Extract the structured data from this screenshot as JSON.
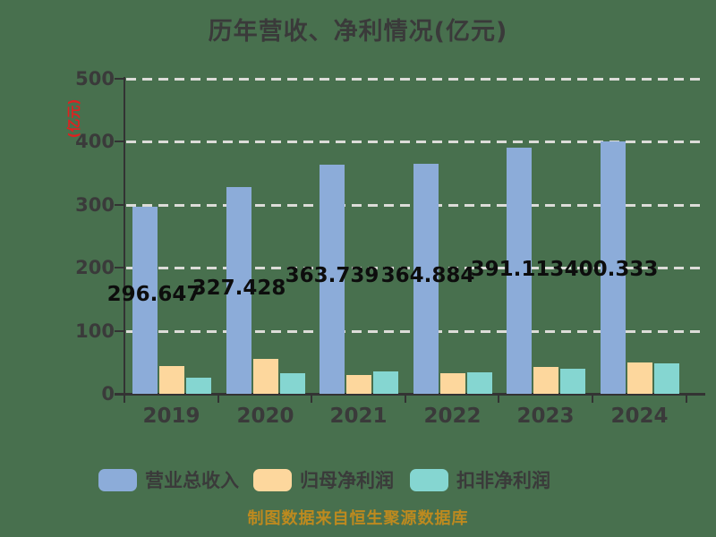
{
  "title": "历年营收、净利情况(亿元)",
  "footer": "制图数据来自恒生聚源数据库",
  "colors": {
    "background": "#48704E",
    "title_text": "#3A3A3A",
    "axis": "#333333",
    "grid": "#DCDCD8",
    "value_label": "#0D0D0D",
    "y_axis_name_red": "#E02020",
    "footer_gold": "#BD8A1F",
    "series_blue": "#8CACD9",
    "series_orange": "#FDD79D",
    "series_teal": "#85D6D1"
  },
  "chart_data": {
    "type": "bar",
    "title": "历年营收、净利情况(亿元)",
    "categories": [
      "2019",
      "2020",
      "2021",
      "2022",
      "2023",
      "2024"
    ],
    "series": [
      {
        "name": "营业总收入",
        "color": "#8CACD9",
        "values": [
          296.647,
          327.428,
          363.739,
          364.884,
          391.113,
          400.333
        ],
        "value_labels": [
          "296.647",
          "327.428",
          "363.739",
          "364.884",
          "391.113",
          "400.333"
        ]
      },
      {
        "name": "归母净利润",
        "color": "#FDD79D",
        "values": [
          44,
          56,
          30,
          33,
          42,
          50
        ]
      },
      {
        "name": "扣非净利润",
        "color": "#85D6D1",
        "values": [
          26,
          32,
          36,
          34,
          40,
          48
        ]
      }
    ],
    "xlabel": "",
    "ylabel": "(亿元)",
    "ylim": [
      0,
      500
    ],
    "yticks": [
      0,
      100,
      200,
      300,
      400,
      500
    ],
    "grid": true,
    "grid_style": "dashed",
    "legend_position": "bottom",
    "source_note": "制图数据来自恒生聚源数据库"
  }
}
